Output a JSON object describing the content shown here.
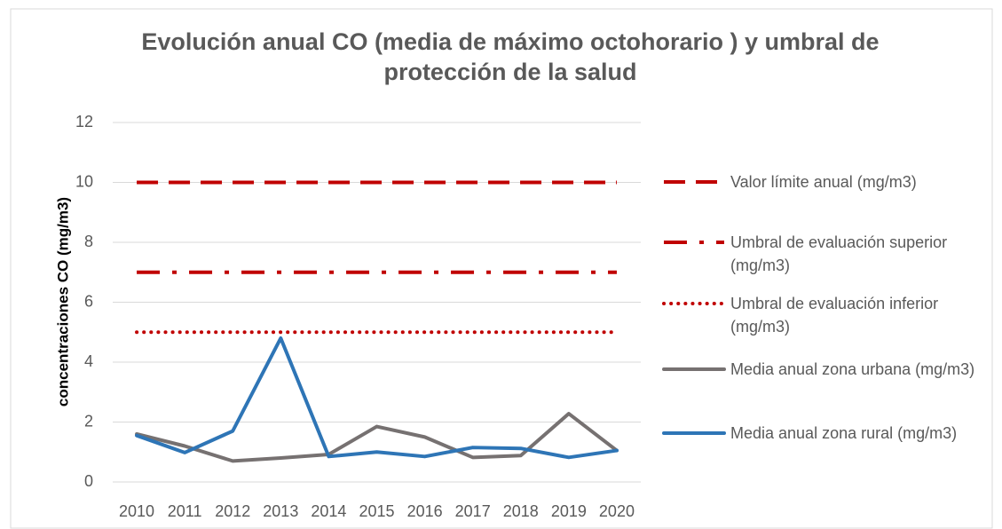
{
  "chart_data": {
    "type": "line",
    "title": "Evolución anual CO (media de máximo octohorario ) y umbral de protección de la salud",
    "y_label": "concentraciones CO (mg/m3)",
    "categories": [
      "2010",
      "2011",
      "2012",
      "2013",
      "2014",
      "2015",
      "2016",
      "2017",
      "2018",
      "2019",
      "2020"
    ],
    "series": [
      {
        "name": "Valor límite anual (mg/m3)",
        "color": "#c00000",
        "dash": "dashed",
        "values": [
          10,
          10,
          10,
          10,
          10,
          10,
          10,
          10,
          10,
          10,
          10
        ]
      },
      {
        "name": "Umbral de evaluación superior (mg/m3)",
        "color": "#c00000",
        "dash": "dashdot",
        "values": [
          7,
          7,
          7,
          7,
          7,
          7,
          7,
          7,
          7,
          7,
          7
        ]
      },
      {
        "name": "Umbral de evaluación inferior (mg/m3)",
        "color": "#c00000",
        "dash": "dotted",
        "values": [
          5,
          5,
          5,
          5,
          5,
          5,
          5,
          5,
          5,
          5,
          5
        ]
      },
      {
        "name": "Media anual zona urbana (mg/m3)",
        "color": "#767171",
        "dash": "solid",
        "values": [
          1.6,
          1.2,
          0.7,
          0.8,
          0.92,
          1.85,
          1.5,
          0.82,
          0.88,
          2.28,
          1.05
        ]
      },
      {
        "name": "Media anual zona rural (mg/m3)",
        "color": "#2e75b6",
        "dash": "solid",
        "values": [
          1.55,
          0.98,
          1.7,
          4.8,
          0.85,
          1.0,
          0.85,
          1.15,
          1.12,
          0.82,
          1.05
        ]
      }
    ],
    "ylim": [
      0,
      12
    ],
    "yticks": [
      0,
      2,
      4,
      6,
      8,
      10,
      12
    ],
    "grid": true,
    "legend": "right"
  }
}
